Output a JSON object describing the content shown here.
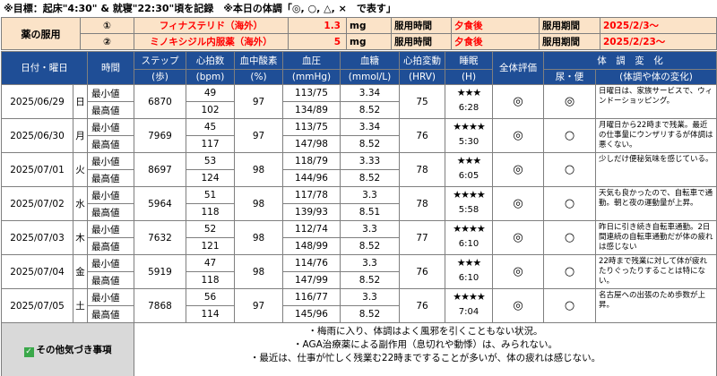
{
  "header": {
    "goal": "※目標：起床\"4:30\" & 就寝\"22:30\"頃を記録　※本日の体調「◎, ○, △, ×　で表す」"
  },
  "medication": {
    "label": "薬の服用",
    "rows": [
      {
        "no": "①",
        "drug": "フィナステリド（海外）",
        "dose": "1.3",
        "unit": "mg",
        "time_label": "服用時間",
        "time": "夕食後",
        "period_label": "服用期間",
        "period": "2025/2/3～"
      },
      {
        "no": "②",
        "drug": "ミノキシジル内服薬（海外）",
        "dose": "5",
        "unit": "mg",
        "time_label": "服用時間",
        "time": "夕食後",
        "period_label": "服用期間",
        "period": "2025/2/23～"
      }
    ]
  },
  "columns": {
    "date": "日付・曜日",
    "time": "時間",
    "steps": [
      "ステップ",
      "(歩)"
    ],
    "hr": [
      "心拍数",
      "(bpm)"
    ],
    "spo2": [
      "血中酸素",
      "(%)"
    ],
    "bp": [
      "血圧",
      "(mmHg)"
    ],
    "glucose": [
      "血糖",
      "(mmol/L)"
    ],
    "hrv": [
      "心拍変動",
      "(HRV)"
    ],
    "sleep": [
      "睡眠",
      "(H)"
    ],
    "overall": "全体評価",
    "change": "体　調　変　化",
    "urine": "尿・便",
    "body": "(体調や体の変化)"
  },
  "labels": {
    "min": "最小値",
    "max": "最高値"
  },
  "days": [
    {
      "date": "2025/06/29",
      "dow": "日",
      "steps": "6870",
      "hr_min": "49",
      "hr_max": "102",
      "spo2": "97",
      "bp_min": "113/75",
      "bp_max": "134/89",
      "glu_min": "3.34",
      "glu_max": "8.52",
      "hrv": "75",
      "stars": "★★★",
      "sleep": "6:28",
      "overall": "◎",
      "urine": "◎",
      "note": "日曜日は、家族サービスで、ウィンドーショッピング。"
    },
    {
      "date": "2025/06/30",
      "dow": "月",
      "steps": "7969",
      "hr_min": "45",
      "hr_max": "117",
      "spo2": "97",
      "bp_min": "113/75",
      "bp_max": "147/98",
      "glu_min": "3.34",
      "glu_max": "8.52",
      "hrv": "76",
      "stars": "★★★★",
      "sleep": "5:30",
      "overall": "◎",
      "urine": "○",
      "note": "月曜日から22時まで残業。最近の仕事量にウンザリするが体調は悪くない。"
    },
    {
      "date": "2025/07/01",
      "dow": "火",
      "steps": "8697",
      "hr_min": "53",
      "hr_max": "124",
      "spo2": "98",
      "bp_min": "118/79",
      "bp_max": "144/96",
      "glu_min": "3.33",
      "glu_max": "8.52",
      "hrv": "78",
      "stars": "★★★",
      "sleep": "6:05",
      "overall": "◎",
      "urine": "○",
      "note": "少しだけ便秘気味を感じている。"
    },
    {
      "date": "2025/07/02",
      "dow": "水",
      "steps": "5964",
      "hr_min": "51",
      "hr_max": "118",
      "spo2": "98",
      "bp_min": "117/78",
      "bp_max": "139/93",
      "glu_min": "3.3",
      "glu_max": "8.51",
      "hrv": "78",
      "stars": "★★★★",
      "sleep": "5:58",
      "overall": "◎",
      "urine": "○",
      "note": "天気も良かったので、自転車で通勤。朝と夜の運動量が上昇。"
    },
    {
      "date": "2025/07/03",
      "dow": "木",
      "steps": "7632",
      "hr_min": "52",
      "hr_max": "121",
      "spo2": "98",
      "bp_min": "112/74",
      "bp_max": "148/99",
      "glu_min": "3.3",
      "glu_max": "8.52",
      "hrv": "77",
      "stars": "★★★★",
      "sleep": "6:10",
      "overall": "◎",
      "urine": "○",
      "note": "昨日に引き続き自転車通勤。2日間連続の自転車通勤だが体の疲れは感じない"
    },
    {
      "date": "2025/07/04",
      "dow": "金",
      "steps": "5919",
      "hr_min": "47",
      "hr_max": "118",
      "spo2": "98",
      "bp_min": "114/76",
      "bp_max": "147/99",
      "glu_min": "3.3",
      "glu_max": "8.52",
      "hrv": "76",
      "stars": "★★★",
      "sleep": "6:10",
      "overall": "◎",
      "urine": "○",
      "note": "22時まで残業に対して体が疲れたりぐったりすることは特にない。"
    },
    {
      "date": "2025/07/05",
      "dow": "土",
      "steps": "7868",
      "hr_min": "56",
      "hr_max": "114",
      "spo2": "97",
      "bp_min": "116/77",
      "bp_max": "145/96",
      "glu_min": "3.3",
      "glu_max": "8.52",
      "hrv": "76",
      "stars": "★★★★",
      "sleep": "7:04",
      "overall": "◎",
      "urine": "○",
      "note": "名古屋への出張のため歩数が上昇。"
    }
  ],
  "footer": {
    "label": "その他気づき事項",
    "check_icon": "check-box-icon",
    "check_color": "#3aa84a",
    "notes": [
      "・梅雨に入り、体調はよく風邪を引くこともない状況。",
      "・AGA治療薬による副作用（息切れや動悸）は、みられない。",
      "・最近は、仕事が忙しく残業む22時まですることが多いが、体の疲れは感じない。"
    ]
  },
  "colors": {
    "header_bg": "#1f4e96",
    "med_bg": "#fbe3c8",
    "accent_red": "#ff0000"
  }
}
